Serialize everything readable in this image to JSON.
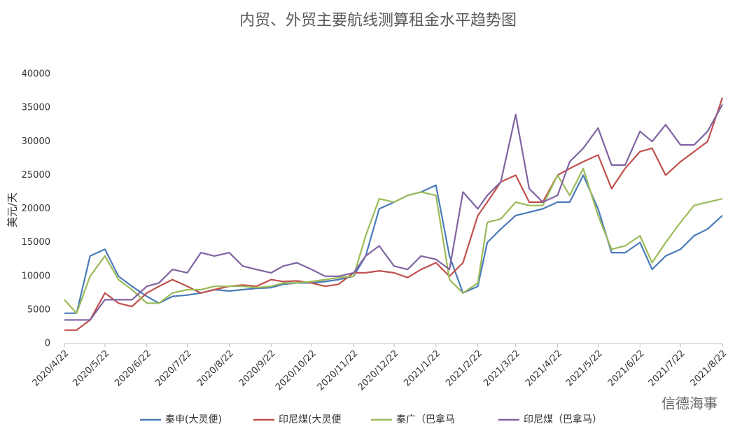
{
  "chart_data": {
    "type": "line",
    "title": "内贸、外贸主要航线测算租金水平趋势图",
    "y_label": "美元/天",
    "watermark": "信德海事",
    "x": [
      "2020/4/22",
      "2020/5/1",
      "2020/5/11",
      "2020/5/22",
      "2020/6/1",
      "2020/6/11",
      "2020/6/22",
      "2020/7/1",
      "2020/7/11",
      "2020/7/22",
      "2020/8/1",
      "2020/8/11",
      "2020/8/22",
      "2020/9/1",
      "2020/9/11",
      "2020/9/22",
      "2020/10/1",
      "2020/10/11",
      "2020/10/22",
      "2020/11/1",
      "2020/11/11",
      "2020/11/22",
      "2020/12/1",
      "2020/12/11",
      "2020/12/22",
      "2021/1/1",
      "2021/1/11",
      "2021/1/22",
      "2021/2/1",
      "2021/2/11",
      "2021/2/22",
      "2021/3/1",
      "2021/3/11",
      "2021/3/22",
      "2021/4/1",
      "2021/4/11",
      "2021/4/22",
      "2021/5/1",
      "2021/5/11",
      "2021/5/22",
      "2021/6/1",
      "2021/6/11",
      "2021/6/22",
      "2021/7/1",
      "2021/7/11",
      "2021/7/22",
      "2021/8/1",
      "2021/8/11",
      "2021/8/22"
    ],
    "xlim": [
      "2020/4/22",
      "2021/8/22"
    ],
    "xticks": [
      "2020/4/22",
      "2020/5/22",
      "2020/6/22",
      "2020/7/22",
      "2020/8/22",
      "2020/9/22",
      "2020/10/22",
      "2020/11/22",
      "2020/12/22",
      "2021/1/22",
      "2021/2/22",
      "2021/3/22",
      "2021/4/22",
      "2021/5/22",
      "2021/6/22",
      "2021/7/22",
      "2021/8/22"
    ],
    "ylim": [
      0,
      40000
    ],
    "yticks": [
      0,
      5000,
      10000,
      15000,
      20000,
      25000,
      30000,
      35000,
      40000
    ],
    "grid": false,
    "series": [
      {
        "name": "秦申(大灵便)",
        "color": "#4a7ab8",
        "values": [
          4500,
          4500,
          13000,
          14000,
          10000,
          8500,
          7000,
          6000,
          7000,
          7200,
          7500,
          8000,
          7800,
          8000,
          8200,
          8300,
          8800,
          9000,
          9000,
          9200,
          9500,
          10000,
          13000,
          20000,
          21000,
          22000,
          22500,
          23500,
          13000,
          7500,
          8500,
          15000,
          17000,
          19000,
          19500,
          20000,
          21000,
          21000,
          25000,
          20000,
          13500,
          13500,
          15000,
          11000,
          13000,
          14000,
          16000,
          17000,
          19000
        ]
      },
      {
        "name": "印尼煤(大灵便",
        "color": "#c0504d",
        "values": [
          2000,
          2000,
          3500,
          7500,
          6000,
          5500,
          7500,
          8500,
          9500,
          8500,
          7500,
          8000,
          8500,
          8700,
          8500,
          9500,
          9200,
          9300,
          9000,
          8500,
          8800,
          10500,
          10500,
          10800,
          10500,
          9800,
          11000,
          12000,
          10000,
          12000,
          19000,
          21000,
          24000,
          25000,
          21000,
          21000,
          25000,
          26000,
          27000,
          28000,
          23000,
          26000,
          28500,
          29000,
          25000,
          27000,
          28500,
          30000,
          36500
        ]
      },
      {
        "name": "秦广（巴拿马",
        "color": "#9bbb59",
        "values": [
          6500,
          4500,
          10000,
          13000,
          9500,
          8000,
          6000,
          6000,
          7500,
          8000,
          8000,
          8500,
          8500,
          8500,
          8300,
          8500,
          9000,
          9000,
          9200,
          9500,
          9800,
          10000,
          16000,
          21500,
          21000,
          22000,
          22500,
          22000,
          9500,
          7500,
          9000,
          18000,
          18500,
          21000,
          20500,
          20500,
          25000,
          22000,
          26000,
          19000,
          14000,
          14500,
          16000,
          12000,
          15000,
          18000,
          20500,
          21000,
          21500
        ]
      },
      {
        "name": "印尼煤（巴拿马）",
        "color": "#8064a2",
        "values": [
          3500,
          3500,
          3500,
          6500,
          6500,
          6500,
          8500,
          9000,
          11000,
          10500,
          13500,
          13000,
          13500,
          11500,
          11000,
          10500,
          11500,
          12000,
          11000,
          10000,
          10000,
          10500,
          13000,
          14500,
          11500,
          11000,
          13000,
          12500,
          11000,
          22500,
          20000,
          22000,
          24000,
          34000,
          23000,
          21000,
          22000,
          27000,
          29000,
          32000,
          26500,
          26500,
          31500,
          30000,
          32500,
          29500,
          29500,
          31500,
          35500
        ]
      }
    ]
  }
}
